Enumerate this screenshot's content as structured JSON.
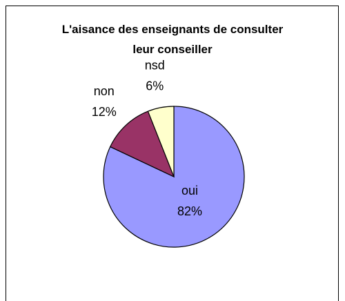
{
  "chart_data": {
    "type": "pie",
    "title": "L'aisance des enseignants de consulter leur conseiller",
    "categories": [
      "oui",
      "non",
      "nsd"
    ],
    "values": [
      82,
      12,
      6
    ],
    "value_labels": [
      "82%",
      "12%",
      "6%"
    ],
    "colors": [
      "#9999ff",
      "#993366",
      "#ffffcc"
    ]
  }
}
